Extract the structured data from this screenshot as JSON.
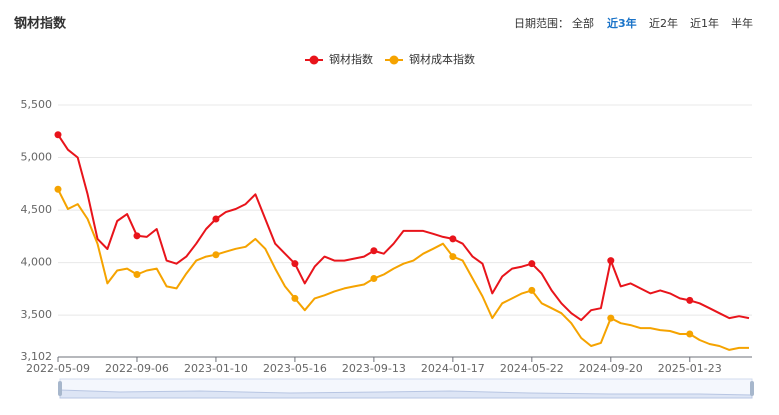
{
  "header": {
    "title": "钢材指数",
    "range_label": "日期范围：",
    "ranges": [
      {
        "label": "全部",
        "active": false
      },
      {
        "label": "近3年",
        "active": true
      },
      {
        "label": "近2年",
        "active": false
      },
      {
        "label": "近1年",
        "active": false
      },
      {
        "label": "半年",
        "active": false
      }
    ]
  },
  "chart_data": {
    "type": "line",
    "categories": [
      "2022-05-09",
      null,
      null,
      null,
      null,
      null,
      null,
      null,
      "2022-09-06",
      null,
      null,
      null,
      null,
      null,
      null,
      null,
      "2023-01-10",
      null,
      null,
      null,
      null,
      null,
      null,
      null,
      "2023-05-16",
      null,
      null,
      null,
      null,
      null,
      null,
      null,
      "2023-09-13",
      null,
      null,
      null,
      null,
      null,
      null,
      null,
      "2024-01-17",
      null,
      null,
      null,
      null,
      null,
      null,
      null,
      "2024-05-22",
      null,
      null,
      null,
      null,
      null,
      null,
      null,
      "2024-09-20",
      null,
      null,
      null,
      null,
      null,
      null,
      null,
      "2025-01-23",
      null,
      null,
      null,
      null,
      null,
      null
    ],
    "series": [
      {
        "name": "钢材指数",
        "color": "#e8141b",
        "values": [
          5217,
          5075,
          5000,
          4650,
          4226,
          4130,
          4396,
          4462,
          4255,
          4245,
          4320,
          4019,
          3990,
          4057,
          4180,
          4320,
          4415,
          4481,
          4510,
          4557,
          4650,
          4415,
          4180,
          4085,
          3990,
          3802,
          3962,
          4057,
          4019,
          4019,
          4038,
          4057,
          4113,
          4085,
          4180,
          4302,
          4302,
          4302,
          4274,
          4245,
          4226,
          4180,
          4057,
          3990,
          3707,
          3868,
          3943,
          3962,
          3990,
          3896,
          3736,
          3613,
          3519,
          3453,
          3547,
          3566,
          4019,
          3774,
          3802,
          3755,
          3707,
          3736,
          3707,
          3660,
          3641,
          3613,
          3566,
          3519,
          3472,
          3490,
          3472
        ]
      },
      {
        "name": "钢材成本指数",
        "color": "#f5a300",
        "values": [
          4698,
          4510,
          4557,
          4415,
          4180,
          3802,
          3925,
          3943,
          3887,
          3925,
          3943,
          3774,
          3755,
          3896,
          4019,
          4057,
          4075,
          4104,
          4132,
          4151,
          4226,
          4132,
          3943,
          3774,
          3660,
          3547,
          3660,
          3689,
          3726,
          3755,
          3774,
          3792,
          3849,
          3887,
          3943,
          3990,
          4019,
          4085,
          4132,
          4180,
          4057,
          4019,
          3849,
          3679,
          3472,
          3613,
          3660,
          3707,
          3736,
          3613,
          3566,
          3519,
          3424,
          3283,
          3207,
          3236,
          3472,
          3424,
          3406,
          3377,
          3377,
          3358,
          3349,
          3321,
          3321,
          3264,
          3226,
          3207,
          3170,
          3189,
          3189
        ]
      }
    ],
    "ylim": [
      3102,
      5500
    ],
    "yticks": [
      {
        "value": 3102,
        "label": "3,102"
      },
      {
        "value": 3500,
        "label": "3,500"
      },
      {
        "value": 4000,
        "label": "4,000"
      },
      {
        "value": 4500,
        "label": "4,500"
      },
      {
        "value": 5000,
        "label": "5,000"
      },
      {
        "value": 5500,
        "label": "5,500"
      }
    ],
    "grid": true,
    "legend": "top"
  }
}
